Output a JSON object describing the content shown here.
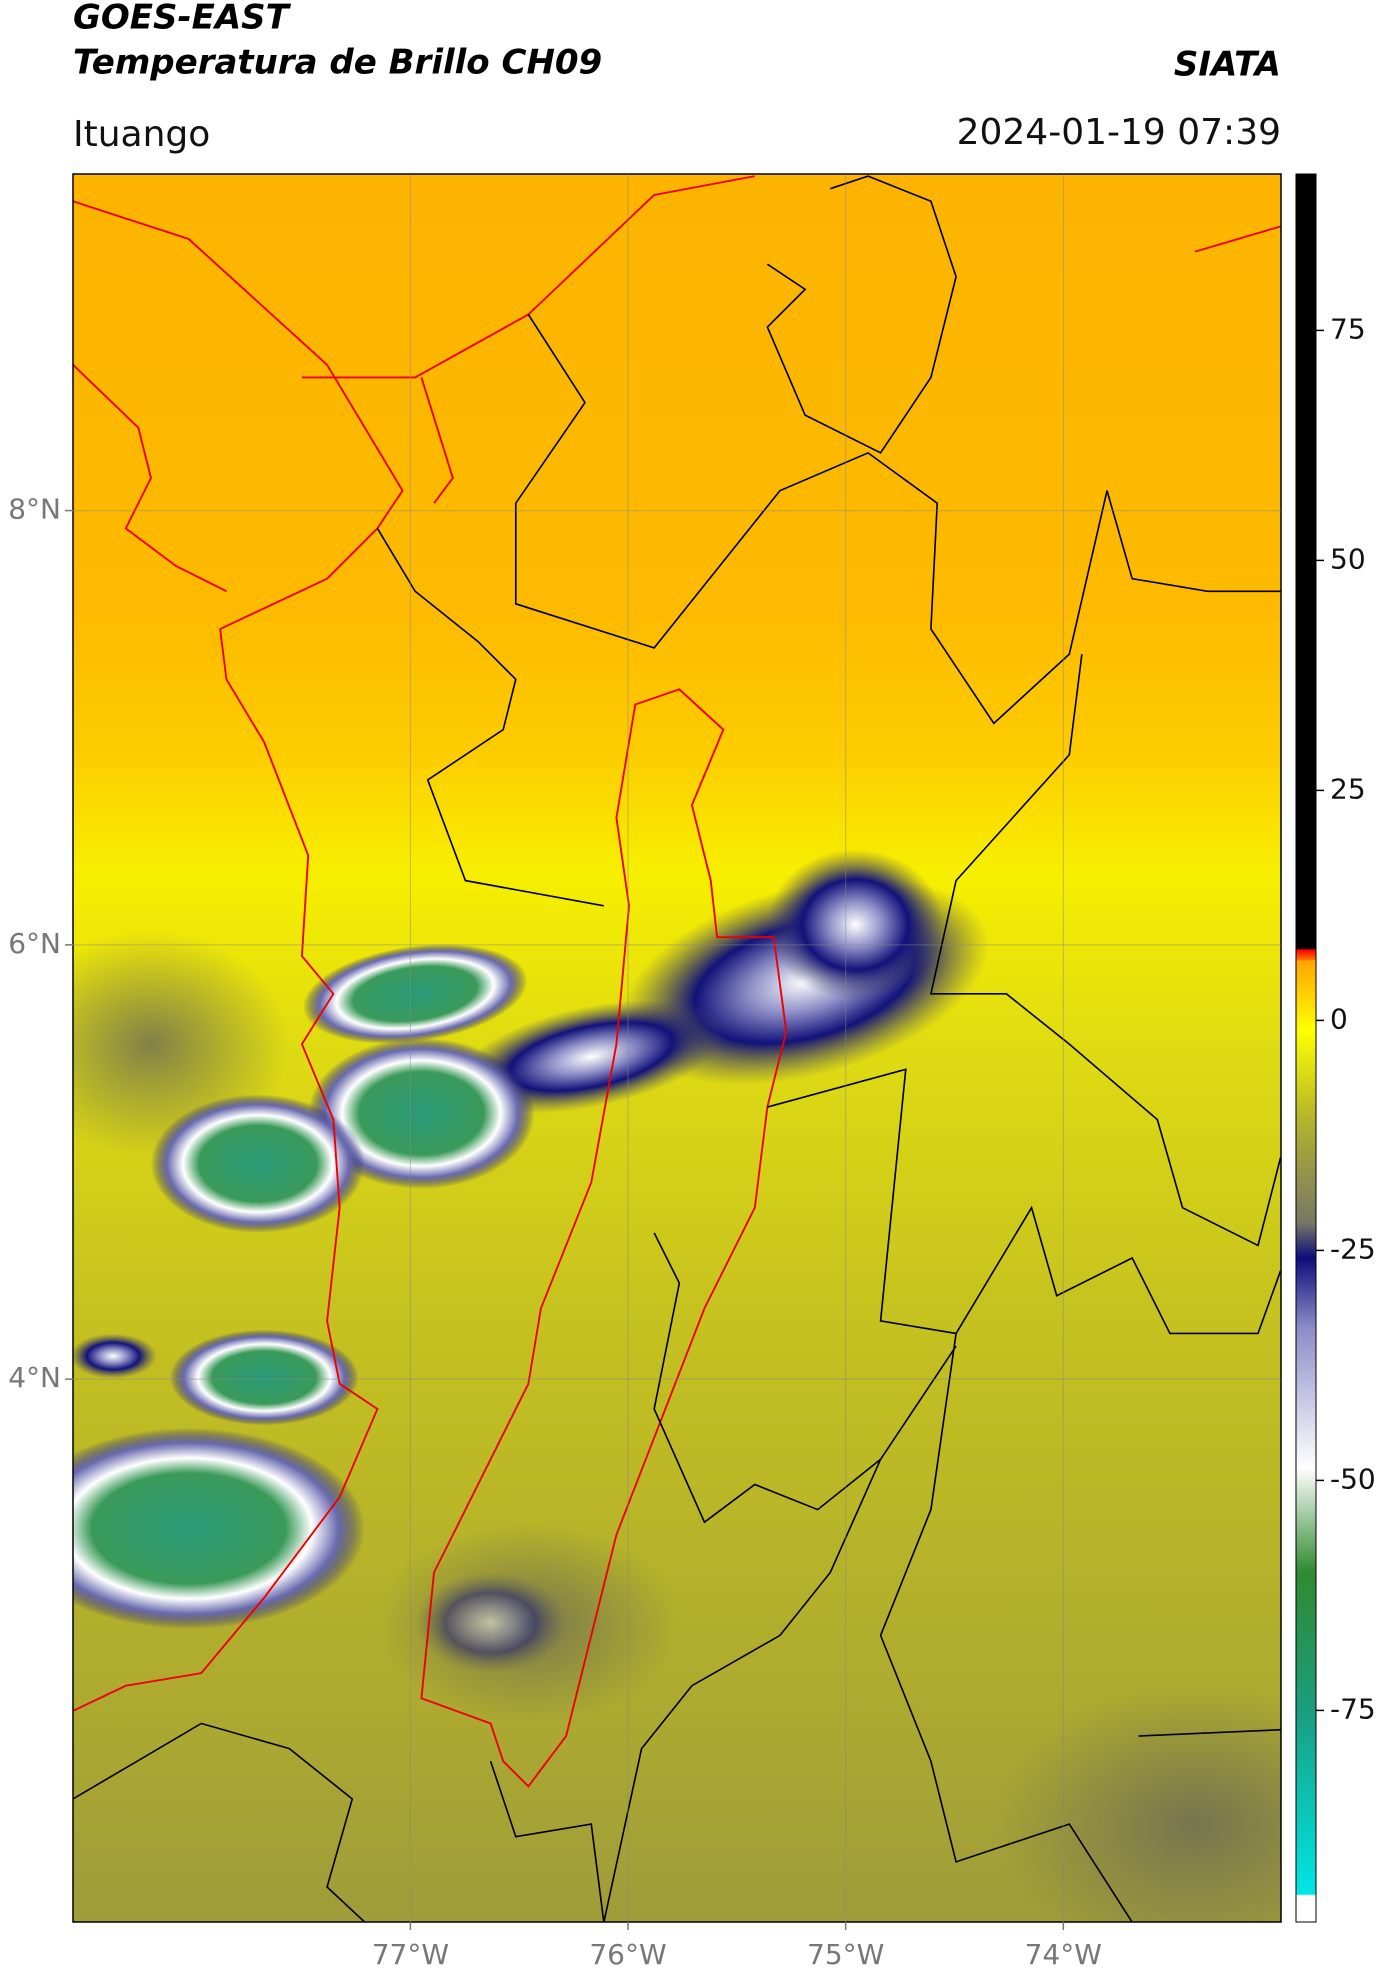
{
  "header": {
    "title": "GOES-EAST",
    "subtitle": "Temperatura de Brillo CH09",
    "org": "SIATA",
    "location": "Ituango",
    "datetime": "2024-01-19 07:39"
  },
  "chart_data": {
    "type": "map",
    "xlim": [
      -78.55,
      -73.0
    ],
    "ylim": [
      1.5,
      9.55
    ],
    "xticks": [
      {
        "value": -77,
        "label": "77°W"
      },
      {
        "value": -76,
        "label": "76°W"
      },
      {
        "value": -75,
        "label": "75°W"
      },
      {
        "value": -74,
        "label": "74°W"
      }
    ],
    "yticks": [
      {
        "value": 4,
        "label": "4°N"
      },
      {
        "value": 6,
        "label": "6°N"
      },
      {
        "value": 8,
        "label": "8°N"
      }
    ],
    "grid": true,
    "colorbar": {
      "lim": [
        -98,
        92
      ],
      "ticks": [
        -75,
        -50,
        -25,
        0,
        25,
        50,
        75
      ]
    }
  }
}
